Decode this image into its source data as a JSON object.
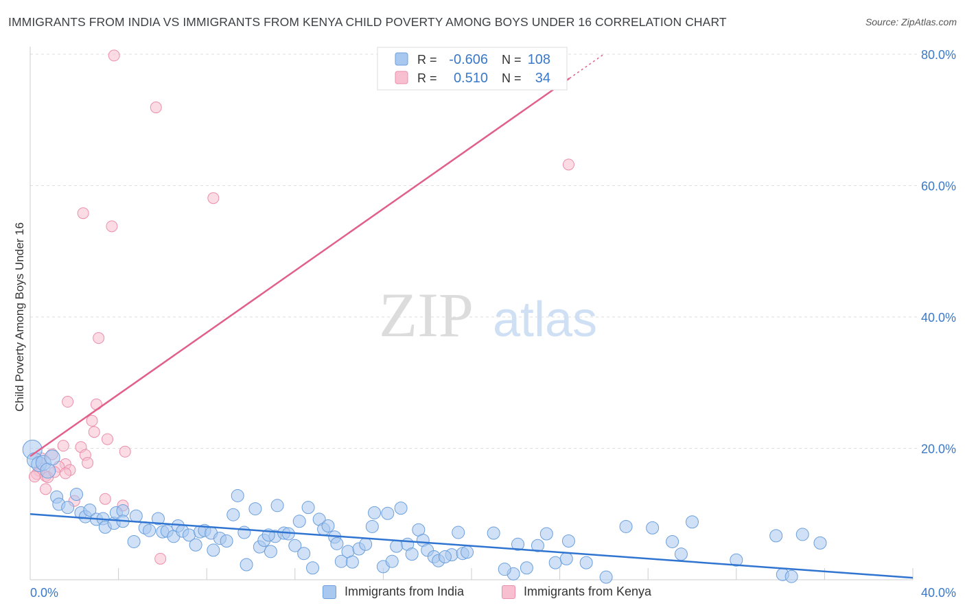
{
  "title": "IMMIGRANTS FROM INDIA VS IMMIGRANTS FROM KENYA CHILD POVERTY AMONG BOYS UNDER 16 CORRELATION CHART",
  "source": "Source: ZipAtlas.com",
  "watermark": {
    "zip": "ZIP",
    "atlas": "atlas"
  },
  "colors": {
    "india_fill": "#a9c8f0",
    "india_stroke": "#6a9fdc",
    "india_line": "#2f74d0",
    "kenya_fill": "#f7bfd0",
    "kenya_stroke": "#eb8eaa",
    "kenya_line": "#e0608a",
    "axis_text": "#3a78c8",
    "grid": "#dddddd"
  },
  "legend": {
    "r_label": "R =",
    "n_label": "N =",
    "india": {
      "r": "-0.606",
      "n": "108"
    },
    "kenya": {
      "r": "0.510",
      "n": "34"
    }
  },
  "chart_data": {
    "type": "scatter",
    "title": "IMMIGRANTS FROM INDIA VS IMMIGRANTS FROM KENYA CHILD POVERTY AMONG BOYS UNDER 16 CORRELATION CHART",
    "xlabel": "",
    "ylabel": "Child Poverty Among Boys Under 16",
    "xlim": [
      0,
      40
    ],
    "ylim": [
      0,
      80
    ],
    "x_ticks": [
      "0.0%",
      "40.0%"
    ],
    "y_ticks": [
      "20.0%",
      "40.0%",
      "60.0%",
      "80.0%"
    ],
    "y_tick_values": [
      20,
      40,
      60,
      80
    ],
    "grid": "horizontal dashed",
    "legend_position": "top-center",
    "series": [
      {
        "name": "Immigrants from India",
        "color": "#a9c8f0",
        "trend": {
          "x": [
            0,
            40
          ],
          "y": [
            10.0,
            0.3
          ]
        },
        "points": [
          [
            0.1,
            19.8
          ],
          [
            0.2,
            18.2
          ],
          [
            0.4,
            17.6
          ],
          [
            0.6,
            17.8
          ],
          [
            0.8,
            16.6
          ],
          [
            1.0,
            18.6
          ],
          [
            1.2,
            12.6
          ],
          [
            1.3,
            11.5
          ],
          [
            1.7,
            11.0
          ],
          [
            2.1,
            13.0
          ],
          [
            2.3,
            10.2
          ],
          [
            2.5,
            9.6
          ],
          [
            2.7,
            10.6
          ],
          [
            3.0,
            9.2
          ],
          [
            3.3,
            9.3
          ],
          [
            3.4,
            8.0
          ],
          [
            3.8,
            8.6
          ],
          [
            3.9,
            10.2
          ],
          [
            4.2,
            10.5
          ],
          [
            4.2,
            8.9
          ],
          [
            4.8,
            9.7
          ],
          [
            4.7,
            5.8
          ],
          [
            5.2,
            7.9
          ],
          [
            5.4,
            7.5
          ],
          [
            5.8,
            9.3
          ],
          [
            6.0,
            7.3
          ],
          [
            6.2,
            7.4
          ],
          [
            6.5,
            6.6
          ],
          [
            6.7,
            8.2
          ],
          [
            6.9,
            7.4
          ],
          [
            7.2,
            6.8
          ],
          [
            7.5,
            5.3
          ],
          [
            7.7,
            7.3
          ],
          [
            7.9,
            7.5
          ],
          [
            8.2,
            7.1
          ],
          [
            8.3,
            4.5
          ],
          [
            8.6,
            6.3
          ],
          [
            8.9,
            5.9
          ],
          [
            9.2,
            9.9
          ],
          [
            9.4,
            12.8
          ],
          [
            9.7,
            7.2
          ],
          [
            9.8,
            2.3
          ],
          [
            10.2,
            10.8
          ],
          [
            10.4,
            5.0
          ],
          [
            10.6,
            6.0
          ],
          [
            10.9,
            4.3
          ],
          [
            11.1,
            6.6
          ],
          [
            11.2,
            11.3
          ],
          [
            11.5,
            7.1
          ],
          [
            11.7,
            7.0
          ],
          [
            12.0,
            5.2
          ],
          [
            12.2,
            8.9
          ],
          [
            12.4,
            4.0
          ],
          [
            12.6,
            11.0
          ],
          [
            12.8,
            1.8
          ],
          [
            13.1,
            9.2
          ],
          [
            13.3,
            7.7
          ],
          [
            13.5,
            8.2
          ],
          [
            13.8,
            6.5
          ],
          [
            13.9,
            5.5
          ],
          [
            14.1,
            2.8
          ],
          [
            14.4,
            4.3
          ],
          [
            14.6,
            2.7
          ],
          [
            14.9,
            4.7
          ],
          [
            15.2,
            5.4
          ],
          [
            15.5,
            8.1
          ],
          [
            15.6,
            10.2
          ],
          [
            16.0,
            2.0
          ],
          [
            16.2,
            10.1
          ],
          [
            16.4,
            2.8
          ],
          [
            16.6,
            5.1
          ],
          [
            16.8,
            10.9
          ],
          [
            17.1,
            5.4
          ],
          [
            17.3,
            3.9
          ],
          [
            17.6,
            7.6
          ],
          [
            17.8,
            6.0
          ],
          [
            18.0,
            4.5
          ],
          [
            18.3,
            3.5
          ],
          [
            18.5,
            2.9
          ],
          [
            19.1,
            3.8
          ],
          [
            19.4,
            7.2
          ],
          [
            19.6,
            4.0
          ],
          [
            19.8,
            4.2
          ],
          [
            21.0,
            7.1
          ],
          [
            21.9,
            0.9
          ],
          [
            22.1,
            5.4
          ],
          [
            22.5,
            1.8
          ],
          [
            23.4,
            7.0
          ],
          [
            23.8,
            2.6
          ],
          [
            24.3,
            3.2
          ],
          [
            24.4,
            5.9
          ],
          [
            25.2,
            2.6
          ],
          [
            26.1,
            0.4
          ],
          [
            27.0,
            8.1
          ],
          [
            28.2,
            7.9
          ],
          [
            29.1,
            5.8
          ],
          [
            29.5,
            3.9
          ],
          [
            30.0,
            8.8
          ],
          [
            32.0,
            3.0
          ],
          [
            33.8,
            6.7
          ],
          [
            34.1,
            0.8
          ],
          [
            34.5,
            0.5
          ],
          [
            35.0,
            6.9
          ],
          [
            35.8,
            5.6
          ],
          [
            21.5,
            1.6
          ],
          [
            18.8,
            3.5
          ],
          [
            23.0,
            5.2
          ],
          [
            10.8,
            6.8
          ]
        ]
      },
      {
        "name": "Immigrants from Kenya",
        "color": "#f7bfd0",
        "trend": {
          "x": [
            0,
            26
          ],
          "y": [
            18.8,
            80.0
          ]
        },
        "points": [
          [
            3.8,
            79.8
          ],
          [
            5.7,
            71.9
          ],
          [
            24.4,
            63.2
          ],
          [
            8.3,
            58.1
          ],
          [
            2.4,
            55.8
          ],
          [
            3.7,
            53.8
          ],
          [
            3.1,
            36.8
          ],
          [
            1.7,
            27.1
          ],
          [
            3.0,
            26.7
          ],
          [
            2.8,
            24.2
          ],
          [
            2.9,
            22.5
          ],
          [
            3.5,
            21.4
          ],
          [
            2.3,
            20.2
          ],
          [
            1.5,
            20.4
          ],
          [
            4.3,
            19.5
          ],
          [
            2.5,
            19.0
          ],
          [
            1.0,
            19.1
          ],
          [
            2.6,
            17.8
          ],
          [
            1.6,
            17.6
          ],
          [
            1.3,
            17.2
          ],
          [
            1.8,
            16.7
          ],
          [
            0.4,
            16.6
          ],
          [
            0.3,
            16.1
          ],
          [
            0.7,
            15.8
          ],
          [
            1.6,
            16.2
          ],
          [
            0.2,
            15.7
          ],
          [
            0.8,
            15.6
          ],
          [
            1.1,
            16.4
          ],
          [
            0.7,
            13.8
          ],
          [
            3.4,
            12.3
          ],
          [
            4.2,
            11.3
          ],
          [
            0.5,
            18.5
          ],
          [
            2.0,
            12.0
          ],
          [
            5.9,
            3.2
          ]
        ]
      }
    ]
  }
}
